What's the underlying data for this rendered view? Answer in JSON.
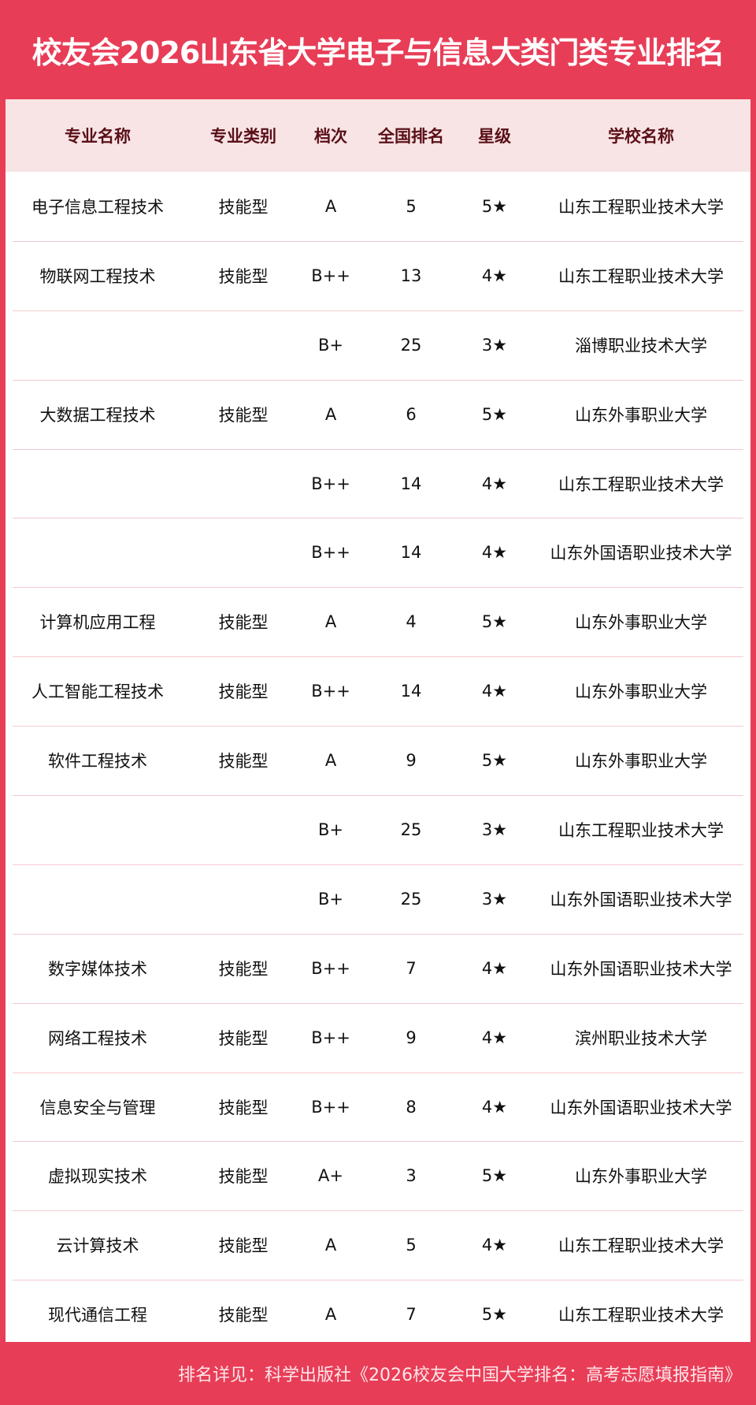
{
  "title": "校友会2026山东省大学电子与信息大类门类专业排名",
  "colors": {
    "brand_red": "#e83d57",
    "header_bg": "#f8e4e5",
    "header_text": "#5a0f18"
  },
  "columns": [
    "专业名称",
    "专业类别",
    "档次",
    "全国排名",
    "星级",
    "学校名称"
  ],
  "rows": [
    [
      "电子信息工程技术",
      "技能型",
      "A",
      "5",
      "5★",
      "山东工程职业技术大学"
    ],
    [
      "物联网工程技术",
      "技能型",
      "B++",
      "13",
      "4★",
      "山东工程职业技术大学"
    ],
    [
      "",
      "",
      "B+",
      "25",
      "3★",
      "淄博职业技术大学"
    ],
    [
      "大数据工程技术",
      "技能型",
      "A",
      "6",
      "5★",
      "山东外事职业大学"
    ],
    [
      "",
      "",
      "B++",
      "14",
      "4★",
      "山东工程职业技术大学"
    ],
    [
      "",
      "",
      "B++",
      "14",
      "4★",
      "山东外国语职业技术大学"
    ],
    [
      "计算机应用工程",
      "技能型",
      "A",
      "4",
      "5★",
      "山东外事职业大学"
    ],
    [
      "人工智能工程技术",
      "技能型",
      "B++",
      "14",
      "4★",
      "山东外事职业大学"
    ],
    [
      "软件工程技术",
      "技能型",
      "A",
      "9",
      "5★",
      "山东外事职业大学"
    ],
    [
      "",
      "",
      "B+",
      "25",
      "3★",
      "山东工程职业技术大学"
    ],
    [
      "",
      "",
      "B+",
      "25",
      "3★",
      "山东外国语职业技术大学"
    ],
    [
      "数字媒体技术",
      "技能型",
      "B++",
      "7",
      "4★",
      "山东外国语职业技术大学"
    ],
    [
      "网络工程技术",
      "技能型",
      "B++",
      "9",
      "4★",
      "滨州职业技术大学"
    ],
    [
      "信息安全与管理",
      "技能型",
      "B++",
      "8",
      "4★",
      "山东外国语职业技术大学"
    ],
    [
      "虚拟现实技术",
      "技能型",
      "A+",
      "3",
      "5★",
      "山东外事职业大学"
    ],
    [
      "云计算技术",
      "技能型",
      "A",
      "5",
      "4★",
      "山东工程职业技术大学"
    ],
    [
      "现代通信工程",
      "技能型",
      "A",
      "7",
      "5★",
      "山东工程职业技术大学"
    ]
  ],
  "footer": "排名详见：科学出版社《2026校友会中国大学排名：高考志愿填报指南》"
}
